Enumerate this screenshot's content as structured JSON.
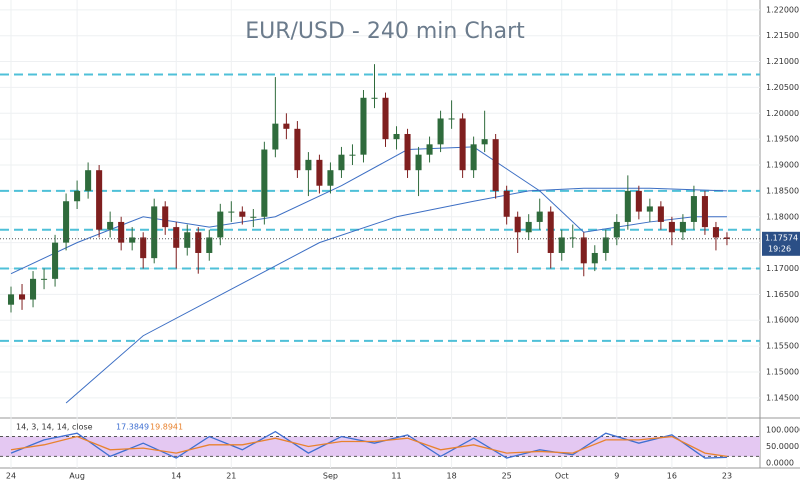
{
  "chart_data": {
    "type": "candlestick",
    "title": "EUR/USD - 240 min Chart",
    "up_color": "#2f6b3c",
    "down_color": "#7f1f1f",
    "x": [
      0,
      1,
      2,
      3,
      4,
      5,
      6,
      7,
      8,
      9,
      10,
      11,
      12,
      13,
      14,
      15,
      16,
      17,
      18,
      19,
      20,
      21,
      22,
      23,
      24,
      25,
      26,
      27,
      28,
      29,
      30,
      31,
      32,
      33,
      34,
      35,
      36,
      37,
      38,
      39,
      40,
      41,
      42,
      43,
      44,
      45,
      46,
      47,
      48,
      49,
      50,
      51,
      52,
      53,
      54,
      55,
      56,
      57,
      58,
      59,
      60,
      61,
      62,
      63,
      64,
      65
    ],
    "open": [
      1.163,
      1.165,
      1.164,
      1.168,
      1.168,
      1.175,
      1.183,
      1.185,
      1.189,
      1.1775,
      1.179,
      1.175,
      1.176,
      1.172,
      1.182,
      1.178,
      1.174,
      1.177,
      1.173,
      1.176,
      1.181,
      1.181,
      1.18,
      1.18,
      1.193,
      1.198,
      1.197,
      1.189,
      1.191,
      1.186,
      1.189,
      1.192,
      1.192,
      1.203,
      1.203,
      1.195,
      1.196,
      1.189,
      1.192,
      1.194,
      1.199,
      1.199,
      1.189,
      1.194,
      1.195,
      1.185,
      1.18,
      1.177,
      1.179,
      1.181,
      1.173,
      1.176,
      1.176,
      1.171,
      1.173,
      1.176,
      1.179,
      1.185,
      1.181,
      1.182,
      1.179,
      1.177,
      1.179,
      1.184,
      1.178,
      1.176
    ],
    "high": [
      1.1665,
      1.167,
      1.1695,
      1.17,
      1.1765,
      1.1845,
      1.187,
      1.1905,
      1.19,
      1.181,
      1.18,
      1.178,
      1.177,
      1.1835,
      1.183,
      1.179,
      1.1785,
      1.178,
      1.1775,
      1.1825,
      1.183,
      1.182,
      1.1815,
      1.1945,
      1.207,
      1.2,
      1.1985,
      1.1925,
      1.192,
      1.1905,
      1.1935,
      1.194,
      1.2045,
      1.2095,
      1.204,
      1.1975,
      1.197,
      1.1935,
      1.1955,
      1.2005,
      1.2025,
      1.2,
      1.1955,
      1.2005,
      1.196,
      1.186,
      1.181,
      1.1805,
      1.1835,
      1.182,
      1.1775,
      1.1785,
      1.177,
      1.1745,
      1.1775,
      1.1805,
      1.188,
      1.186,
      1.1835,
      1.183,
      1.18,
      1.1805,
      1.186,
      1.185,
      1.179,
      1.177
    ],
    "low": [
      1.1615,
      1.162,
      1.1625,
      1.166,
      1.1665,
      1.1735,
      1.1815,
      1.1835,
      1.176,
      1.176,
      1.1735,
      1.1735,
      1.17,
      1.171,
      1.1765,
      1.17,
      1.1725,
      1.169,
      1.1715,
      1.1745,
      1.179,
      1.1785,
      1.178,
      1.1785,
      1.1915,
      1.195,
      1.1875,
      1.184,
      1.1845,
      1.1845,
      1.1875,
      1.19,
      1.1905,
      1.201,
      1.1935,
      1.193,
      1.1875,
      1.184,
      1.1905,
      1.1925,
      1.197,
      1.1875,
      1.1875,
      1.1925,
      1.1835,
      1.1785,
      1.173,
      1.1755,
      1.1775,
      1.17,
      1.1715,
      1.174,
      1.1685,
      1.1695,
      1.1715,
      1.1745,
      1.1775,
      1.1795,
      1.179,
      1.1775,
      1.1745,
      1.1755,
      1.1775,
      1.1765,
      1.1735,
      1.1745
    ],
    "close": [
      1.165,
      1.164,
      1.168,
      1.168,
      1.175,
      1.183,
      1.185,
      1.189,
      1.1775,
      1.179,
      1.175,
      1.176,
      1.172,
      1.182,
      1.178,
      1.174,
      1.177,
      1.173,
      1.176,
      1.181,
      1.181,
      1.18,
      1.18,
      1.193,
      1.198,
      1.197,
      1.189,
      1.191,
      1.186,
      1.189,
      1.192,
      1.192,
      1.203,
      1.203,
      1.195,
      1.196,
      1.189,
      1.192,
      1.194,
      1.199,
      1.199,
      1.189,
      1.194,
      1.195,
      1.185,
      1.18,
      1.177,
      1.179,
      1.181,
      1.173,
      1.176,
      1.176,
      1.171,
      1.173,
      1.176,
      1.179,
      1.185,
      1.181,
      1.182,
      1.179,
      1.177,
      1.179,
      1.184,
      1.178,
      1.176,
      1.1757
    ],
    "moving_averages": [
      {
        "color": "#3d6fc4",
        "x": [
          0,
          6,
          12,
          18,
          24,
          30,
          36,
          42,
          48,
          52,
          58,
          62,
          65
        ],
        "values": [
          1.169,
          1.175,
          1.18,
          1.178,
          1.18,
          1.186,
          1.193,
          1.1935,
          1.185,
          1.177,
          1.179,
          1.18,
          1.18
        ]
      },
      {
        "color": "#3d6fc4",
        "x": [
          5,
          12,
          20,
          28,
          35,
          42,
          47,
          52,
          58,
          65
        ],
        "values": [
          1.144,
          1.157,
          1.166,
          1.175,
          1.18,
          1.183,
          1.185,
          1.1855,
          1.1855,
          1.185
        ]
      }
    ],
    "levels": [
      1.2075,
      1.185,
      1.1775,
      1.17,
      1.156
    ],
    "level_color": "#4fc0d8",
    "last_price": {
      "value": 1.17574,
      "label": "1.17574"
    },
    "last_time": "19:26",
    "xlim": [
      -1,
      68
    ],
    "ylim": [
      1.1411,
      1.2219
    ],
    "xticks": [
      {
        "value": 0,
        "label": "24"
      },
      {
        "value": 6,
        "label": "Aug"
      },
      {
        "value": 15,
        "label": "14"
      },
      {
        "value": 20,
        "label": "21"
      },
      {
        "value": 29,
        "label": "Sep"
      },
      {
        "value": 35,
        "label": "11"
      },
      {
        "value": 40,
        "label": "18"
      },
      {
        "value": 45,
        "label": "25"
      },
      {
        "value": 50,
        "label": "Oct"
      },
      {
        "value": 55,
        "label": "9"
      },
      {
        "value": 60,
        "label": "16"
      },
      {
        "value": 65,
        "label": "23"
      }
    ],
    "yticks": [
      {
        "value": 1.145,
        "label": "1.14500"
      },
      {
        "value": 1.15,
        "label": "1.15000"
      },
      {
        "value": 1.155,
        "label": "1.15500"
      },
      {
        "value": 1.16,
        "label": "1.16000"
      },
      {
        "value": 1.165,
        "label": "1.16500"
      },
      {
        "value": 1.17,
        "label": "1.17000"
      },
      {
        "value": 1.175,
        "label": "1.17500"
      },
      {
        "value": 1.18,
        "label": "1.18000"
      },
      {
        "value": 1.185,
        "label": "1.18500"
      },
      {
        "value": 1.19,
        "label": "1.19000"
      },
      {
        "value": 1.195,
        "label": "1.19500"
      },
      {
        "value": 1.2,
        "label": "1.20000"
      },
      {
        "value": 1.205,
        "label": "1.20500"
      },
      {
        "value": 1.21,
        "label": "1.21000"
      },
      {
        "value": 1.215,
        "label": "1.21500"
      },
      {
        "value": 1.22,
        "label": "1.22000"
      }
    ],
    "grid": true,
    "stochastic": {
      "label": "14, 3, 14, 14, close",
      "readouts": [
        "17.3849",
        "19.8941"
      ],
      "x": [
        0,
        3,
        6,
        9,
        12,
        15,
        18,
        21,
        24,
        27,
        30,
        33,
        36,
        39,
        42,
        45,
        48,
        51,
        54,
        57,
        60,
        63,
        65
      ],
      "k": {
        "color": "#3f6fd1",
        "values": [
          30,
          70,
          90,
          20,
          60,
          15,
          80,
          40,
          95,
          30,
          80,
          60,
          85,
          20,
          75,
          15,
          40,
          25,
          90,
          60,
          85,
          15,
          17
        ]
      },
      "d": {
        "color": "#e8822e",
        "values": [
          40,
          55,
          80,
          40,
          45,
          30,
          55,
          55,
          75,
          50,
          65,
          65,
          75,
          40,
          55,
          30,
          35,
          30,
          70,
          70,
          80,
          30,
          20
        ]
      },
      "bands": [
        20,
        80
      ],
      "ylim": [
        -15,
        136
      ],
      "yticks": [
        {
          "value": 0,
          "label": "0.0000"
        },
        {
          "value": 50,
          "label": "50.0000"
        },
        {
          "value": 100,
          "label": "100.0000"
        }
      ]
    }
  }
}
